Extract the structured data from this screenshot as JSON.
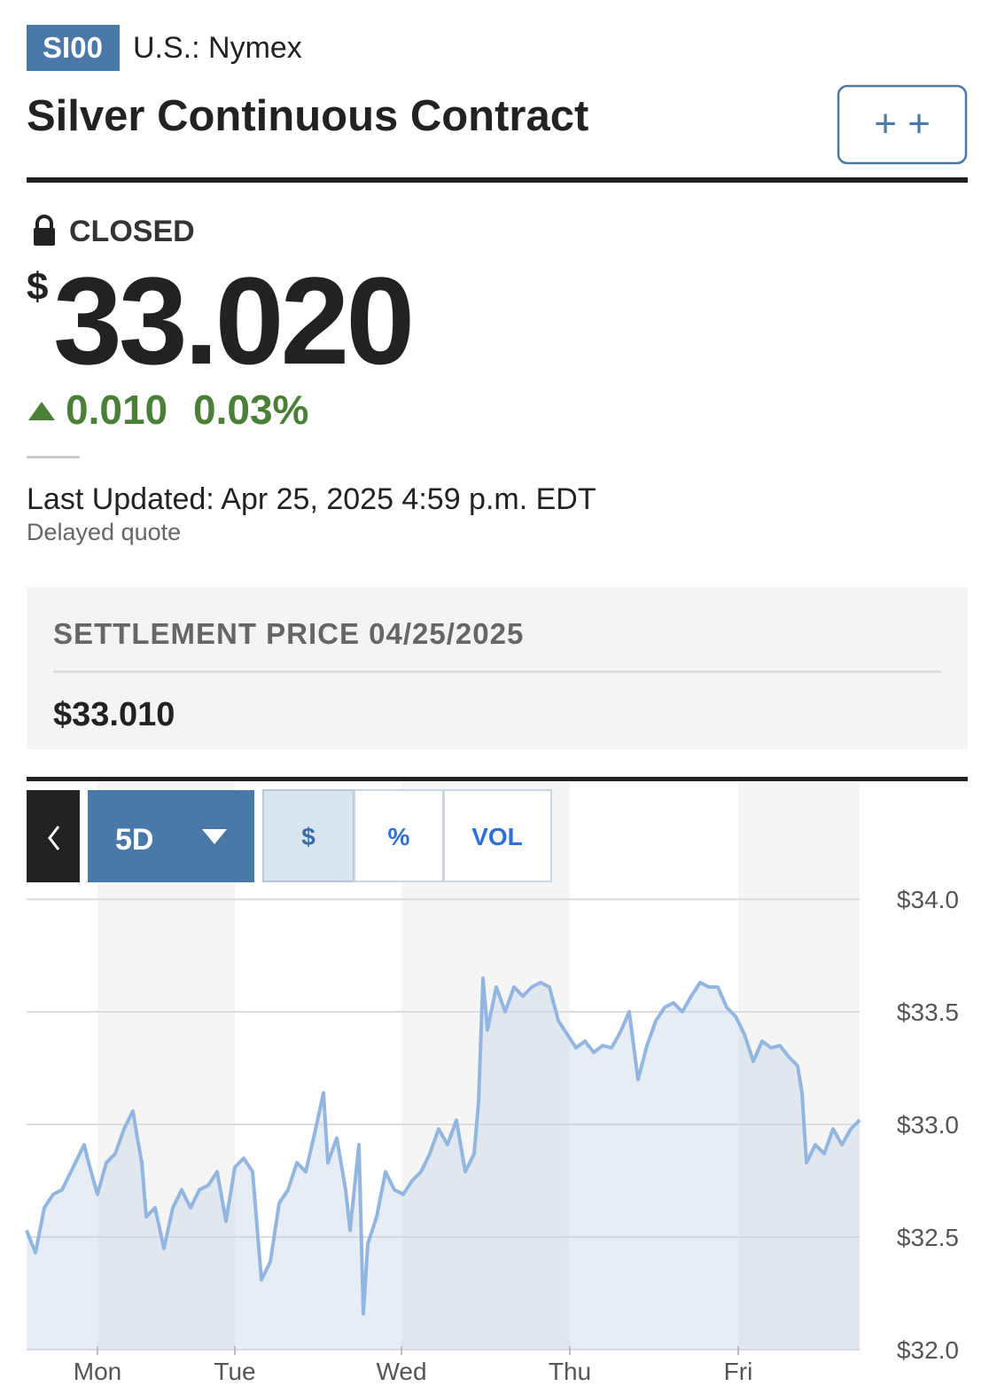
{
  "header": {
    "symbol": "SI00",
    "exchange": "U.S.: Nymex",
    "title": "Silver Continuous Contract",
    "button": "+ +"
  },
  "quote": {
    "status": "CLOSED",
    "currency": "$",
    "price": "33.020",
    "change": "0.010",
    "change_percent": "0.03%",
    "last_updated": "Last Updated: Apr 25, 2025 4:59 p.m. EDT",
    "note": "Delayed quote"
  },
  "settlement": {
    "label": "SETTLEMENT PRICE 04/25/2025",
    "price": "$33.010"
  },
  "controls": {
    "range": "5D",
    "modes": [
      "$",
      "%",
      "VOL"
    ]
  },
  "chart_data": {
    "type": "line",
    "color": "#93b6e0",
    "fill_color": "#c4d3e4",
    "x": [
      0,
      1,
      2,
      3,
      4,
      5,
      6,
      6.5,
      7,
      8,
      9,
      10,
      11,
      12,
      12.5,
      13,
      13.5,
      14.5,
      15.5,
      16.5,
      17.5,
      18.5,
      19.5,
      20.5,
      21.5,
      22.5,
      23.5,
      24.5,
      25.5,
      26,
      26.5,
      27.5,
      28.5,
      29.5,
      30.5,
      31.5,
      32.5,
      33.5,
      34,
      35,
      36,
      36.5,
      37.5,
      38,
      38.5,
      39.5,
      40.5,
      41.5,
      42.5,
      43.5,
      44.5,
      45.5,
      46.5,
      47.5,
      48.5,
      49.5,
      50.5,
      51,
      51.5,
      52,
      53,
      54,
      55,
      56,
      57,
      58,
      59,
      60,
      61,
      62,
      63,
      64,
      65,
      66,
      67,
      68,
      69,
      70,
      71,
      72,
      73,
      74,
      75,
      76,
      77,
      78,
      79,
      80,
      81,
      82,
      83,
      84,
      85,
      86,
      87,
      87.5,
      88,
      89,
      90,
      91,
      92,
      93,
      94
    ],
    "values": [
      32.53,
      32.43,
      32.63,
      32.69,
      32.71,
      32.79,
      32.87,
      32.91,
      32.83,
      32.69,
      32.83,
      32.87,
      32.98,
      33.06,
      32.94,
      32.83,
      32.59,
      32.63,
      32.45,
      32.63,
      32.71,
      32.63,
      32.71,
      32.73,
      32.79,
      32.57,
      32.81,
      32.85,
      32.79,
      32.55,
      32.31,
      32.39,
      32.65,
      32.71,
      32.83,
      32.79,
      32.96,
      33.14,
      32.83,
      32.94,
      32.71,
      32.53,
      32.91,
      32.16,
      32.47,
      32.59,
      32.79,
      32.71,
      32.69,
      32.75,
      32.79,
      32.87,
      32.98,
      32.91,
      33.02,
      32.79,
      32.87,
      33.1,
      33.65,
      33.42,
      33.61,
      33.5,
      33.61,
      33.57,
      33.61,
      33.63,
      33.61,
      33.46,
      33.4,
      33.34,
      33.37,
      33.32,
      33.35,
      33.34,
      33.41,
      33.5,
      33.2,
      33.35,
      33.46,
      33.52,
      33.54,
      33.5,
      33.57,
      33.63,
      33.61,
      33.61,
      33.52,
      33.48,
      33.4,
      33.28,
      33.37,
      33.34,
      33.35,
      33.3,
      33.26,
      33.14,
      32.83,
      32.91,
      32.87,
      32.98,
      32.91,
      32.98,
      33.02
    ],
    "xlim": [
      0,
      94
    ],
    "xticks": [
      {
        "value": 8,
        "label": "Mon"
      },
      {
        "value": 23.5,
        "label": "Tue"
      },
      {
        "value": 42.3,
        "label": "Wed"
      },
      {
        "value": 61.3,
        "label": "Thu"
      },
      {
        "value": 80.3,
        "label": "Fri"
      }
    ],
    "ylim": [
      32,
      34.52
    ],
    "yticks": [
      {
        "value": 32,
        "label": "$32.0"
      },
      {
        "value": 32.5,
        "label": "$32.5"
      },
      {
        "value": 33,
        "label": "$33.0"
      },
      {
        "value": 33.5,
        "label": "$33.5"
      },
      {
        "value": 34,
        "label": "$34.0"
      }
    ],
    "grid": true
  }
}
